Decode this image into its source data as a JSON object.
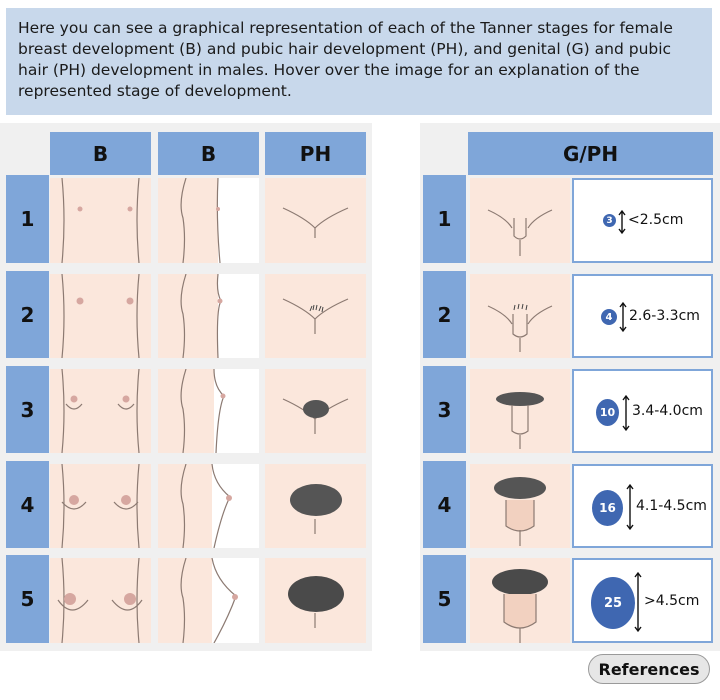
{
  "intro_text": "Here you can see a graphical representation of each of the Tanner stages for female breast development (B) and pubic hair development (PH), and genital (G) and pubic hair (PH) development in males. Hover over the image for an explanation of the represented stage of development.",
  "female_table": {
    "headers": [
      "B",
      "B",
      "PH"
    ],
    "stages": [
      "1",
      "2",
      "3",
      "4",
      "5"
    ]
  },
  "male_table": {
    "header": "G/PH",
    "stages": [
      "1",
      "2",
      "3",
      "4",
      "5"
    ],
    "testis_volumes": [
      "3",
      "4",
      "10",
      "16",
      "25"
    ],
    "sizes": [
      "<2.5cm",
      "2.6-3.3cm",
      "3.4-4.0cm",
      "4.1-4.5cm",
      ">4.5cm"
    ]
  },
  "references_label": "References",
  "colors": {
    "header_blue": "#7fa6d9",
    "skin": "#fbe7dc",
    "line": "#8c7a72",
    "volume_blue": "#3f67b1",
    "intro_bg": "#c8d8eb"
  }
}
